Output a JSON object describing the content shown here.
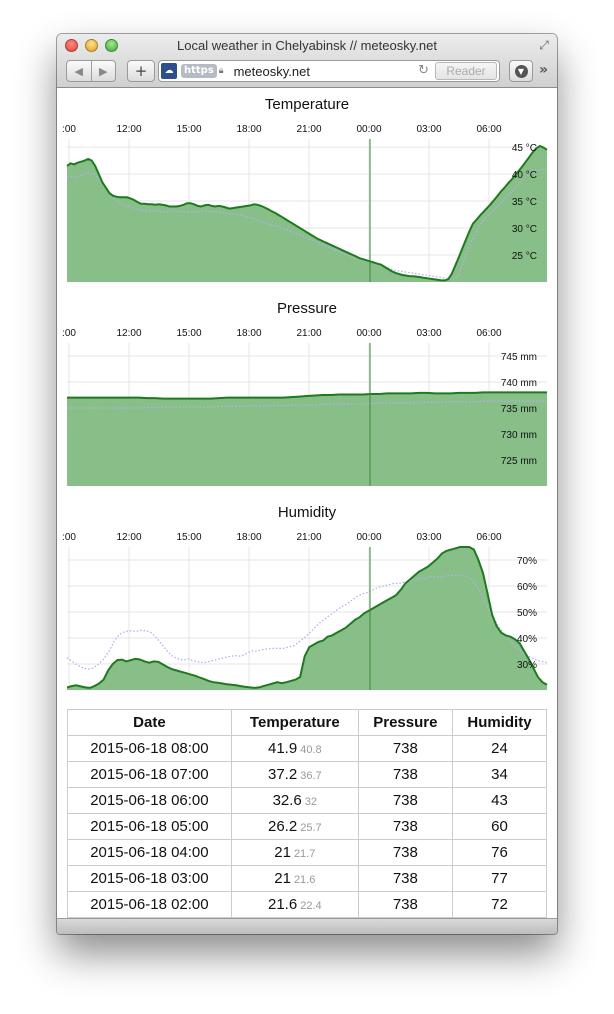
{
  "window": {
    "title": "Local weather in Chelyabinsk // meteosky.net"
  },
  "toolbar": {
    "back_icon": "◀",
    "forward_icon": "▶",
    "plus": "+",
    "https_label": "https",
    "url": "meteosky.net",
    "reader": "Reader",
    "more": "»"
  },
  "colors": {
    "fill": "#88bf88",
    "line": "#1e7a1e",
    "dotted": "#b0b0ee",
    "now_line": "#3a8a3a",
    "grid": "#e6e6e6"
  },
  "time_ticks": [
    ":00",
    "12:00",
    "15:00",
    "18:00",
    "21:00",
    "00:00",
    "03:00",
    "06:00"
  ],
  "charts": [
    {
      "title": "Temperature",
      "y_ticks": [
        "45 °C",
        "40 °C",
        "35 °C",
        "30 °C",
        "25 °C"
      ],
      "chart_data": {
        "type": "area",
        "ylim": [
          20,
          46.5
        ],
        "series": [
          {
            "values": [
              41.5,
              42,
              41.8,
              42.1,
              42.3,
              42.5,
              42.8,
              42.5,
              41.5,
              40,
              38.5,
              37.5,
              36.5,
              36,
              35.8,
              35.7,
              35.7,
              35.7,
              35.5,
              35.2,
              34.8,
              34.5,
              34.5,
              34.4,
              34.4,
              34.3,
              34.4,
              34.3,
              34.2,
              34,
              34,
              34,
              34.1,
              34.3,
              34.6,
              34.6,
              34.4,
              34.1,
              34,
              34.2,
              34.3,
              34.1,
              34,
              34.1,
              34,
              33.8,
              33.6,
              33.7,
              33.8,
              33.9,
              34,
              34.1,
              34.2,
              34.4,
              34.3,
              34.1,
              33.8,
              33.5,
              33.1,
              32.8,
              32.4,
              32,
              31.6,
              31.2,
              30.8,
              30.4,
              30,
              29.6,
              29.2,
              28.8,
              28.4,
              28,
              27.7,
              27.4,
              27.1,
              26.8,
              26.5,
              26.2,
              25.9,
              25.6,
              25.3,
              25,
              24.7,
              24.4,
              24.2,
              24,
              23.8,
              23.6,
              23.4,
              23.2,
              22.8,
              22.4,
              22.0,
              21.7,
              21.5,
              21.3,
              21.2,
              21.1,
              21.05,
              21,
              20.9,
              20.8,
              20.7,
              20.6,
              20.5,
              20.4,
              20.3,
              20.3,
              20.5,
              21.5,
              23,
              24.6,
              26.2,
              27.8,
              29.4,
              30.8,
              31.5,
              32.3,
              33,
              33.7,
              34.4,
              35.2,
              36,
              36.8,
              37.5,
              38.3,
              39,
              39.8,
              40.6,
              41.4,
              42.3,
              43.2,
              44.1,
              44.8,
              45.2,
              44.9,
              44.5
            ]
          },
          {
            "values": [
              39.5,
              39.6,
              39.5,
              39.6,
              39.8,
              40,
              40.3,
              40.2,
              39.8,
              39,
              38.2,
              37.2,
              36.2,
              35.5,
              35,
              34.6,
              34.2,
              34,
              33.8,
              33.6,
              33.4,
              33.3,
              33.2,
              33.2,
              33.2,
              33.1,
              33,
              33,
              33.1,
              33.2,
              33.2,
              33.1,
              33,
              33,
              33,
              33,
              33,
              33.1,
              33.1,
              33.1,
              33.1,
              33,
              33,
              32.9,
              32.8,
              32.7,
              32.6,
              32.5,
              32.4,
              32.3,
              32.2,
              32,
              31.8,
              31.5,
              31.2,
              31,
              30.8,
              30.6,
              30.4,
              30.2,
              30,
              29.8,
              29.6,
              29.3,
              29,
              28.8,
              28.5,
              28.2,
              27.9,
              27.6,
              27.4,
              27.1,
              26.8,
              26.5,
              26.2,
              25.9,
              25.6,
              25.3,
              25,
              24.8,
              24.6,
              24.4,
              24.2,
              24,
              23.8,
              23.6,
              23.4,
              23.2,
              23,
              22.8,
              22.5,
              22.3,
              22.1,
              22,
              21.9,
              21.8,
              21.7,
              21.6,
              21.5,
              21.4,
              21.3,
              21.2,
              21.1,
              21,
              20.9,
              20.8,
              20.7,
              20.6,
              20.6,
              21,
              22.5,
              24.5,
              26.3,
              27.8,
              29,
              30.2,
              31.2,
              32,
              32.7,
              33.3,
              33.9,
              34.6,
              35.3,
              36,
              36.7,
              37.4,
              38,
              38.7,
              39.4,
              40.1,
              40.8,
              40.8,
              40.8,
              40.8,
              40.8
            ]
          }
        ]
      }
    },
    {
      "title": "Pressure",
      "y_ticks": [
        "745 mm",
        "740 mm",
        "735 mm",
        "730 mm",
        "725 mm"
      ],
      "chart_data": {
        "type": "area",
        "ylim": [
          720,
          747.5
        ],
        "series": [
          {
            "values": [
              737,
              737,
              737,
              737,
              737,
              737,
              737,
              737,
              737,
              737,
              736.9,
              736.9,
              736.8,
              736.8,
              736.8,
              736.8,
              736.8,
              736.8,
              736.8,
              736.9,
              737,
              737,
              737,
              737,
              737,
              737,
              737,
              737,
              737.1,
              737.2,
              737.3,
              737.4,
              737.5,
              737.5,
              737.6,
              737.6,
              737.6,
              737.6,
              737.7,
              737.7,
              737.8,
              737.8,
              737.8,
              737.8,
              737.9,
              737.9,
              737.8,
              737.8,
              737.8,
              737.9,
              737.9,
              737.9,
              738,
              738,
              738,
              738,
              738,
              738,
              738,
              738,
              738
            ]
          },
          {
            "values": [
              735,
              735,
              735,
              735,
              735,
              735,
              735,
              735,
              735,
              735,
              735.1,
              735.1,
              735.1,
              735.2,
              735.2,
              735.2,
              735.2,
              735.2,
              735.2,
              735.3,
              735.3,
              735.3,
              735.3,
              735.4,
              735.4,
              735.4,
              735.5,
              735.5,
              735.5,
              735.6,
              735.6,
              735.6,
              735.7,
              735.7,
              735.7,
              735.8,
              735.8,
              735.8,
              735.9,
              735.9,
              735.9,
              736,
              736,
              736,
              736,
              736.1,
              736.1,
              736.1,
              736.2,
              736.2,
              736.2,
              736.2,
              736.3,
              736.3,
              736.3,
              736.3,
              736.3,
              736.3,
              736.3,
              736.3,
              736.3
            ]
          }
        ]
      }
    },
    {
      "title": "Humidity",
      "y_ticks": [
        "70%",
        "60%",
        "50%",
        "40%",
        "30%"
      ],
      "chart_data": {
        "type": "area",
        "ylim": [
          20,
          75
        ],
        "series": [
          {
            "values": [
              21,
              21.5,
              21.8,
              21.4,
              21,
              20.8,
              21.5,
              22.5,
              24,
              27.5,
              30,
              31.5,
              31.7,
              31,
              31.5,
              32,
              31.7,
              31,
              30.5,
              31,
              30.8,
              29.8,
              28.8,
              28,
              27.5,
              27,
              26.5,
              26,
              25.5,
              24.8,
              24.2,
              23.5,
              23,
              22.8,
              22.5,
              22.2,
              22,
              21.8,
              21.5,
              21.2,
              21,
              20.8,
              21,
              21.5,
              22,
              22.5,
              23,
              22.6,
              23,
              23.5,
              24,
              25,
              33,
              36.5,
              37.5,
              38.5,
              39,
              40.5,
              41,
              42,
              43,
              44,
              45.5,
              47,
              48,
              49.5,
              50.5,
              51.5,
              52.5,
              53.5,
              54.5,
              55.5,
              56.5,
              58.5,
              61,
              62.5,
              64,
              65.5,
              66.5,
              67.5,
              69,
              70.5,
              72.5,
              73.5,
              74,
              74.5,
              75,
              75,
              75,
              74,
              70,
              65,
              57,
              49,
              44.5,
              42,
              41,
              40.5,
              39.5,
              38,
              35,
              32,
              28.5,
              25,
              23,
              22
            ]
          },
          {
            "values": [
              32.5,
              31,
              29.5,
              28.5,
              28,
              28.5,
              30,
              32,
              35,
              39,
              41.5,
              42.5,
              42.8,
              42.5,
              43,
              42.8,
              42,
              40,
              37.5,
              35,
              33,
              32,
              31.5,
              32,
              31.2,
              30.8,
              30.5,
              31,
              31.5,
              32,
              32.5,
              33,
              33.2,
              33,
              34,
              35,
              35,
              35.5,
              35.8,
              36,
              36,
              36,
              36.5,
              37,
              38.5,
              40,
              42,
              44,
              46,
              47.5,
              49,
              50.5,
              52,
              53,
              54.5,
              56,
              57,
              57.5,
              58.5,
              59.5,
              60,
              60.5,
              61,
              61,
              61.5,
              62,
              62.5,
              63,
              63.2,
              63.5,
              63.5,
              63.5,
              64,
              64,
              64,
              64,
              63.5,
              62,
              59,
              55,
              50.5,
              47,
              44,
              41,
              39,
              37,
              35,
              33.5,
              32.5,
              31.5,
              31,
              30.5
            ]
          }
        ]
      }
    }
  ],
  "table": {
    "headers": [
      "Date",
      "Temperature",
      "Pressure",
      "Humidity"
    ],
    "rows": [
      {
        "date": "2015-06-18 08:00",
        "temp": "41.9",
        "temp_sub": "40.8",
        "pressure": "738",
        "humidity": "24"
      },
      {
        "date": "2015-06-18 07:00",
        "temp": "37.2",
        "temp_sub": "36.7",
        "pressure": "738",
        "humidity": "34"
      },
      {
        "date": "2015-06-18 06:00",
        "temp": "32.6",
        "temp_sub": "32",
        "pressure": "738",
        "humidity": "43"
      },
      {
        "date": "2015-06-18 05:00",
        "temp": "26.2",
        "temp_sub": "25.7",
        "pressure": "738",
        "humidity": "60"
      },
      {
        "date": "2015-06-18 04:00",
        "temp": "21",
        "temp_sub": "21.7",
        "pressure": "738",
        "humidity": "76"
      },
      {
        "date": "2015-06-18 03:00",
        "temp": "21",
        "temp_sub": "21.6",
        "pressure": "738",
        "humidity": "77"
      },
      {
        "date": "2015-06-18 02:00",
        "temp": "21.6",
        "temp_sub": "22.4",
        "pressure": "738",
        "humidity": "72"
      }
    ]
  }
}
